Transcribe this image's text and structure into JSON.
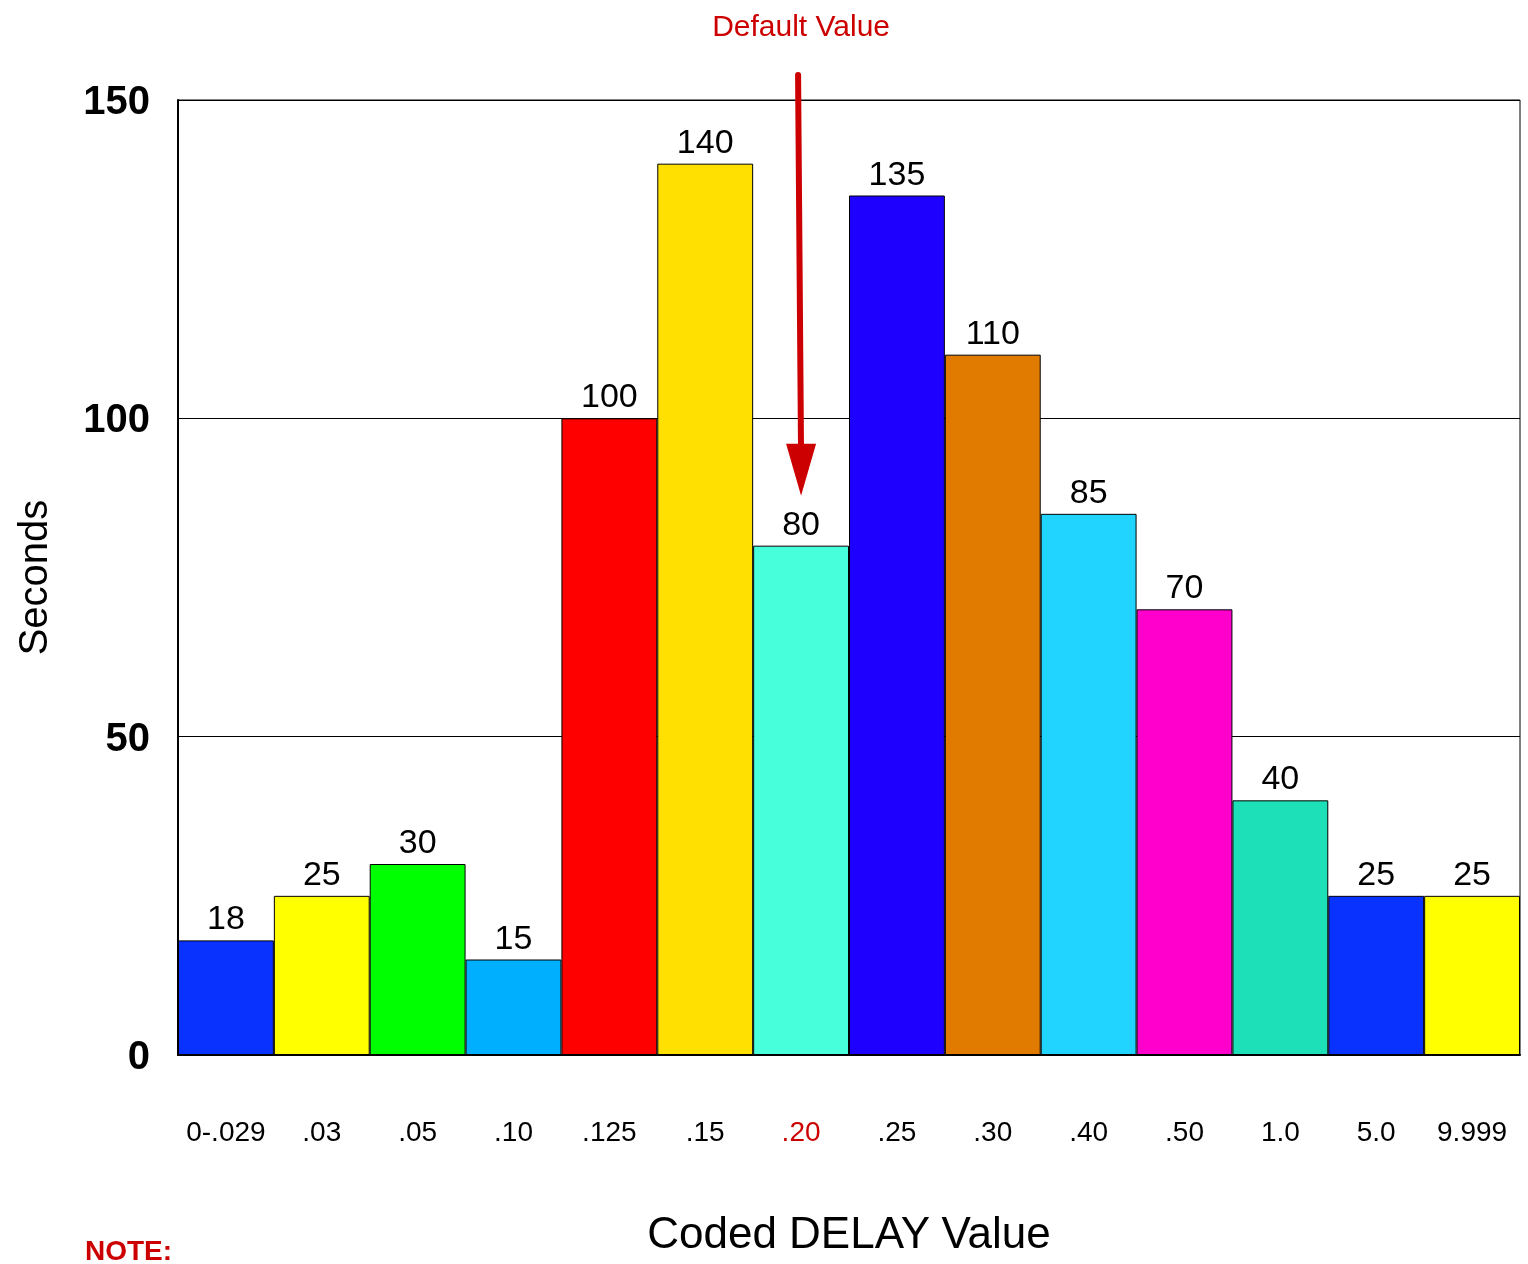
{
  "chart_data": {
    "type": "bar",
    "xlabel": "Coded DELAY Value",
    "ylabel": "Seconds",
    "categories": [
      "0-.029",
      ".03",
      ".05",
      ".10",
      ".125",
      ".15",
      ".20",
      ".25",
      ".30",
      ".40",
      ".50",
      "1.0",
      "5.0",
      "9.999"
    ],
    "values": [
      18,
      25,
      30,
      15,
      100,
      140,
      80,
      135,
      110,
      85,
      70,
      40,
      25,
      25
    ],
    "colors": [
      "#0a32ff",
      "#ffff00",
      "#00ff00",
      "#00b0ff",
      "#ff0000",
      "#ffe000",
      "#48ffdc",
      "#1e00ff",
      "#e07b00",
      "#20d4ff",
      "#ff00cc",
      "#1ee0b8",
      "#0a32ff",
      "#ffff00"
    ],
    "ylim": [
      0,
      150
    ],
    "yticks": [
      0,
      50,
      100,
      150
    ],
    "grid": "y",
    "data_labels": true,
    "annotations": [
      {
        "text": "Default Value",
        "x": ".20"
      },
      "NOTE:"
    ]
  }
}
